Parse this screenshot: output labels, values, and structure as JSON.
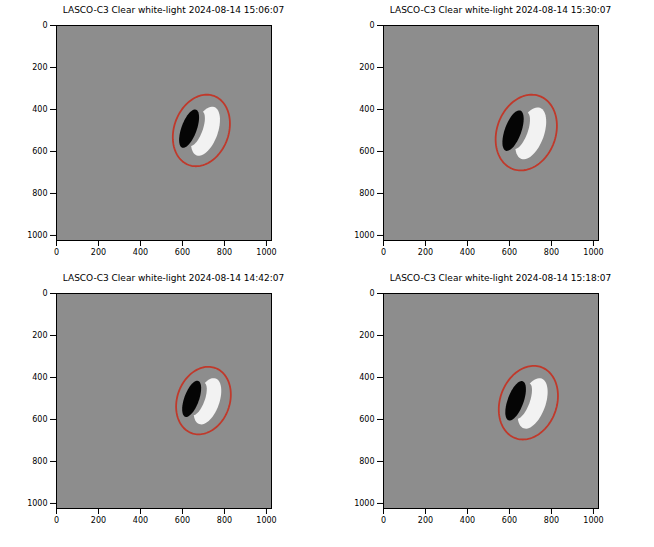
{
  "chart_data": [
    {
      "type": "image",
      "title": "LASCO-C3 Clear white-light 2024-08-14 15:06:07",
      "xlim": [
        0,
        1024
      ],
      "ylim": [
        1024,
        0
      ],
      "xticks": [
        0,
        200,
        400,
        600,
        800,
        1000
      ],
      "yticks": [
        0,
        200,
        400,
        600,
        800,
        1000
      ],
      "ellipse": {
        "cx": 690,
        "cy": 500,
        "rx": 130,
        "ry": 175,
        "angle": 20,
        "color": "#c0392b"
      }
    },
    {
      "type": "image",
      "title": "LASCO-C3 Clear white-light 2024-08-14 15:30:07",
      "xlim": [
        0,
        1024
      ],
      "ylim": [
        1024,
        0
      ],
      "xticks": [
        0,
        200,
        400,
        600,
        800,
        1000
      ],
      "yticks": [
        0,
        200,
        400,
        600,
        800,
        1000
      ],
      "ellipse": {
        "cx": 680,
        "cy": 510,
        "rx": 140,
        "ry": 185,
        "angle": 20,
        "color": "#c0392b"
      }
    },
    {
      "type": "image",
      "title": "LASCO-C3 Clear white-light 2024-08-14 14:42:07",
      "xlim": [
        0,
        1024
      ],
      "ylim": [
        1024,
        0
      ],
      "xticks": [
        0,
        200,
        400,
        600,
        800,
        1000
      ],
      "yticks": [
        0,
        200,
        400,
        600,
        800,
        1000
      ],
      "ellipse": {
        "cx": 700,
        "cy": 510,
        "rx": 125,
        "ry": 165,
        "angle": 20,
        "color": "#c0392b"
      }
    },
    {
      "type": "image",
      "title": "LASCO-C3 Clear white-light 2024-08-14 15:18:07",
      "xlim": [
        0,
        1024
      ],
      "ylim": [
        1024,
        0
      ],
      "xticks": [
        0,
        200,
        400,
        600,
        800,
        1000
      ],
      "yticks": [
        0,
        200,
        400,
        600,
        800,
        1000
      ],
      "ellipse": {
        "cx": 690,
        "cy": 520,
        "rx": 135,
        "ry": 180,
        "angle": 20,
        "color": "#c0392b"
      }
    }
  ]
}
